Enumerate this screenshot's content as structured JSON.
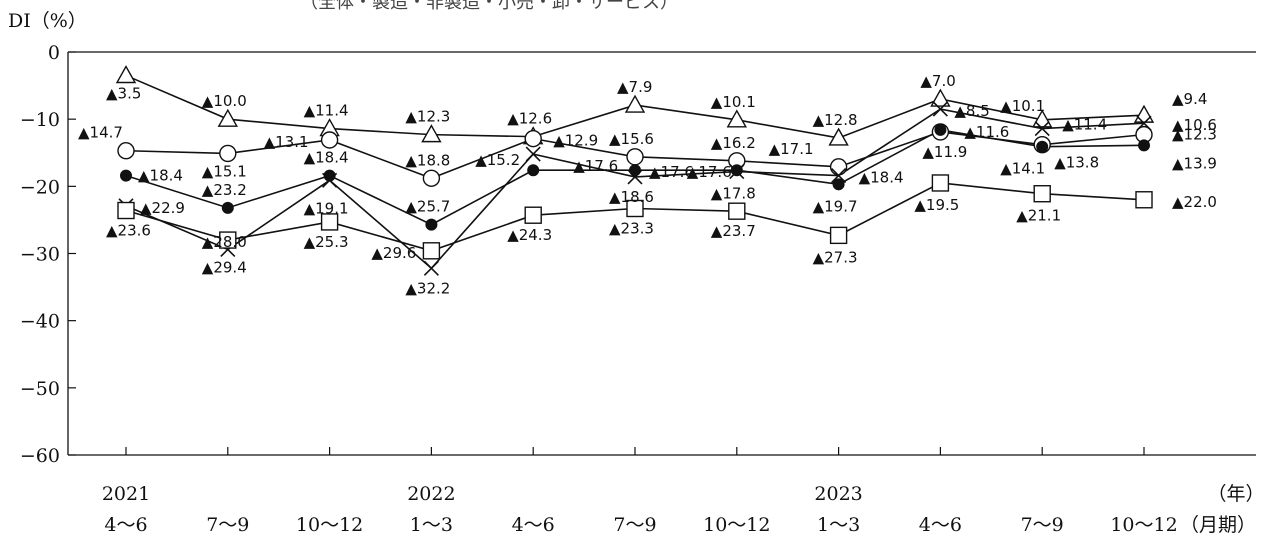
{
  "caption_partial": "（全体・製造・非製造・小売・卸・サービス）",
  "chart_data": {
    "type": "line",
    "ylabel": "DI（%）",
    "ylim": [
      -60,
      0
    ],
    "yticks": [
      0,
      -10,
      -20,
      -30,
      -40,
      -50,
      -60
    ],
    "ytick_labels": [
      "0",
      "−10",
      "−20",
      "−30",
      "−40",
      "−50",
      "−60"
    ],
    "categories": [
      "4〜6",
      "7〜9",
      "10〜12",
      "1〜3",
      "4〜6",
      "7〜9",
      "10〜12",
      "1〜3",
      "4〜6",
      "7〜9",
      "10〜12"
    ],
    "year_labels": [
      "2021",
      "",
      "",
      "2022",
      "",
      "",
      "",
      "2023",
      "",
      "",
      ""
    ],
    "x_unit_labels": [
      "（年）",
      "（月期）"
    ],
    "negative_marker": "▲",
    "series": [
      {
        "marker": "triangle",
        "values": [
          -3.5,
          -10.0,
          -11.4,
          -12.3,
          -12.6,
          -7.9,
          -10.1,
          -12.8,
          -7.0,
          -10.1,
          -9.4
        ]
      },
      {
        "marker": "circle-open",
        "values": [
          -14.7,
          -15.1,
          -13.1,
          -18.8,
          -12.9,
          -15.6,
          -16.2,
          -17.1,
          -11.9,
          -13.8,
          -12.3
        ]
      },
      {
        "marker": "circle-filled",
        "values": [
          -18.4,
          -23.2,
          -18.4,
          -25.7,
          -17.6,
          -17.6,
          -17.6,
          -19.7,
          -11.6,
          -14.1,
          -13.9
        ]
      },
      {
        "marker": "cross",
        "values": [
          -22.9,
          -29.4,
          -19.1,
          -32.2,
          -15.2,
          -18.6,
          -17.8,
          -18.4,
          -8.5,
          -11.4,
          -10.6
        ]
      },
      {
        "marker": "square",
        "values": [
          -23.6,
          -28.0,
          -25.3,
          -29.6,
          -24.3,
          -23.3,
          -23.7,
          -27.3,
          -19.5,
          -21.1,
          -22.0
        ]
      }
    ],
    "data_labels": [
      {
        "text": "3.5",
        "ci": 0,
        "v": -3.5,
        "dx": -20,
        "dy": 18
      },
      {
        "text": "10.0",
        "ci": 1,
        "v": -10.0,
        "dx": -26,
        "dy": -18
      },
      {
        "text": "11.4",
        "ci": 2,
        "v": -11.4,
        "dx": -26,
        "dy": -18
      },
      {
        "text": "12.3",
        "ci": 3,
        "v": -12.3,
        "dx": -26,
        "dy": -18
      },
      {
        "text": "12.6",
        "ci": 4,
        "v": -12.6,
        "dx": -26,
        "dy": -18
      },
      {
        "text": "7.9",
        "ci": 5,
        "v": -7.9,
        "dx": -18,
        "dy": -18
      },
      {
        "text": "10.1",
        "ci": 6,
        "v": -10.1,
        "dx": -26,
        "dy": -18
      },
      {
        "text": "12.8",
        "ci": 7,
        "v": -12.8,
        "dx": -26,
        "dy": -18
      },
      {
        "text": "7.0",
        "ci": 8,
        "v": -7.0,
        "dx": -20,
        "dy": -18
      },
      {
        "text": "10.1",
        "ci": 9,
        "v": -10.1,
        "dx": -42,
        "dy": -14
      },
      {
        "text": "9.4",
        "ci": 10,
        "v": -9.4,
        "dx": 28,
        "dy": -16
      },
      {
        "text": "14.7",
        "ci": 0,
        "v": -14.7,
        "dx": -48,
        "dy": -18
      },
      {
        "text": "15.1",
        "ci": 1,
        "v": -15.1,
        "dx": -26,
        "dy": 18
      },
      {
        "text": "13.1",
        "ci": 2,
        "v": -13.1,
        "dx": -66,
        "dy": 2
      },
      {
        "text": "18.8",
        "ci": 3,
        "v": -18.8,
        "dx": -26,
        "dy": -18
      },
      {
        "text": "12.9",
        "ci": 4,
        "v": -12.9,
        "dx": 20,
        "dy": 2
      },
      {
        "text": "15.6",
        "ci": 5,
        "v": -15.6,
        "dx": -26,
        "dy": -18
      },
      {
        "text": "16.2",
        "ci": 6,
        "v": -16.2,
        "dx": -26,
        "dy": -18
      },
      {
        "text": "17.1",
        "ci": 7,
        "v": -17.1,
        "dx": -70,
        "dy": -18
      },
      {
        "text": "11.9",
        "ci": 8,
        "v": -11.9,
        "dx": -18,
        "dy": 20
      },
      {
        "text": "13.8",
        "ci": 9,
        "v": -13.8,
        "dx": 12,
        "dy": 18
      },
      {
        "text": "12.3",
        "ci": 10,
        "v": -12.3,
        "dx": 28,
        "dy": 0
      },
      {
        "text": "18.4",
        "ci": 0,
        "v": -18.4,
        "dx": 12,
        "dy": 0
      },
      {
        "text": "23.2",
        "ci": 1,
        "v": -23.2,
        "dx": -26,
        "dy": -18
      },
      {
        "text": "18.4",
        "ci": 2,
        "v": -18.4,
        "dx": -26,
        "dy": -18
      },
      {
        "text": "25.7",
        "ci": 3,
        "v": -25.7,
        "dx": -26,
        "dy": -18
      },
      {
        "text": "17.6",
        "ci": 4,
        "v": -17.6,
        "dx": 40,
        "dy": -4
      },
      {
        "text": "17.6",
        "ci": 5,
        "v": -17.6,
        "dx": 14,
        "dy": 2
      },
      {
        "text": "17.6",
        "ci": 6,
        "v": -17.6,
        "dx": -50,
        "dy": 2
      },
      {
        "text": "19.7",
        "ci": 7,
        "v": -19.7,
        "dx": -26,
        "dy": 22
      },
      {
        "text": "11.6",
        "ci": 8,
        "v": -11.6,
        "dx": 24,
        "dy": 2
      },
      {
        "text": "14.1",
        "ci": 9,
        "v": -14.1,
        "dx": -42,
        "dy": 22
      },
      {
        "text": "13.9",
        "ci": 10,
        "v": -13.9,
        "dx": 28,
        "dy": 18
      },
      {
        "text": "22.9",
        "ci": 0,
        "v": -22.9,
        "dx": 14,
        "dy": 2
      },
      {
        "text": "29.4",
        "ci": 1,
        "v": -29.4,
        "dx": -26,
        "dy": 18
      },
      {
        "text": "19.1",
        "ci": 2,
        "v": -19.1,
        "dx": -26,
        "dy": 28
      },
      {
        "text": "32.2",
        "ci": 3,
        "v": -32.2,
        "dx": -26,
        "dy": 20
      },
      {
        "text": "15.2",
        "ci": 4,
        "v": -15.2,
        "dx": -58,
        "dy": 6
      },
      {
        "text": "18.6",
        "ci": 5,
        "v": -18.6,
        "dx": -26,
        "dy": 20
      },
      {
        "text": "17.8",
        "ci": 6,
        "v": -17.8,
        "dx": -26,
        "dy": 22
      },
      {
        "text": "18.4",
        "ci": 7,
        "v": -18.4,
        "dx": 20,
        "dy": 2
      },
      {
        "text": "8.5",
        "ci": 8,
        "v": -8.5,
        "dx": 14,
        "dy": 2
      },
      {
        "text": "11.4",
        "ci": 9,
        "v": -11.4,
        "dx": 20,
        "dy": -4
      },
      {
        "text": "10.6",
        "ci": 10,
        "v": -10.6,
        "dx": 28,
        "dy": 2
      },
      {
        "text": "23.6",
        "ci": 0,
        "v": -23.6,
        "dx": -20,
        "dy": 20
      },
      {
        "text": "28.0",
        "ci": 1,
        "v": -28.0,
        "dx": -26,
        "dy": 2
      },
      {
        "text": "25.3",
        "ci": 2,
        "v": -25.3,
        "dx": -26,
        "dy": 20
      },
      {
        "text": "29.6",
        "ci": 3,
        "v": -29.6,
        "dx": -60,
        "dy": 2
      },
      {
        "text": "24.3",
        "ci": 4,
        "v": -24.3,
        "dx": -26,
        "dy": 20
      },
      {
        "text": "23.3",
        "ci": 5,
        "v": -23.3,
        "dx": -26,
        "dy": 20
      },
      {
        "text": "23.7",
        "ci": 6,
        "v": -23.7,
        "dx": -26,
        "dy": 20
      },
      {
        "text": "27.3",
        "ci": 7,
        "v": -27.3,
        "dx": -26,
        "dy": 22
      },
      {
        "text": "19.5",
        "ci": 8,
        "v": -19.5,
        "dx": -26,
        "dy": 22
      },
      {
        "text": "21.1",
        "ci": 9,
        "v": -21.1,
        "dx": -26,
        "dy": 22
      },
      {
        "text": "22.0",
        "ci": 10,
        "v": -22.0,
        "dx": 28,
        "dy": 2
      }
    ]
  }
}
